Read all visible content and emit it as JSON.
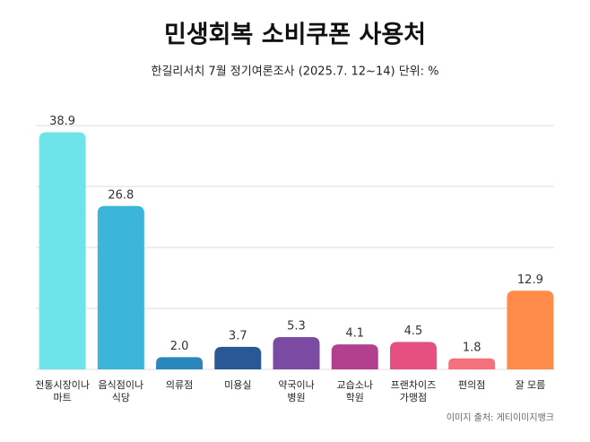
{
  "chart_data": {
    "type": "bar",
    "title": "민생회복 소비쿠폰 사용처",
    "subtitle": "한길리서치 7월 정기여론조사 (2025.7. 12~14) 단위: %",
    "categories": [
      "전통시장이나\n마트",
      "음식점이나\n식당",
      "의류점",
      "미용실",
      "약국이나\n병원",
      "교습소나\n학원",
      "프랜차이즈\n가맹점",
      "편의점",
      "잘 모름"
    ],
    "values": [
      38.9,
      26.8,
      2.0,
      3.7,
      5.3,
      4.1,
      4.5,
      1.8,
      12.9
    ],
    "value_labels": [
      "38.9",
      "26.8",
      "2.0",
      "3.7",
      "5.3",
      "4.1",
      "4.5",
      "1.8",
      "12.9"
    ],
    "colors": [
      "#6de3ea",
      "#3bb5d9",
      "#2b86bd",
      "#2a5896",
      "#7b4aa2",
      "#b2408e",
      "#e4507f",
      "#f4707a",
      "#ff8c4b"
    ],
    "ylim": [
      0,
      40
    ],
    "yticks": [
      0,
      10,
      20,
      30,
      40
    ],
    "grid": true,
    "source": "이미지 출처: 게티이미지뱅크"
  }
}
